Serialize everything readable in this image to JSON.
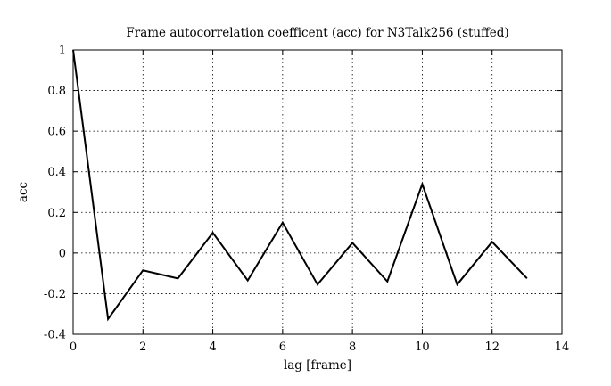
{
  "chart_data": {
    "type": "line",
    "title": "Frame autocorrelation coefficent (acc) for N3Talk256 (stuffed)",
    "xlabel": "lag [frame]",
    "ylabel": "acc",
    "xlim": [
      0,
      14
    ],
    "ylim": [
      -0.4,
      1
    ],
    "xticks": [
      0,
      2,
      4,
      6,
      8,
      10,
      12,
      14
    ],
    "yticks": [
      1,
      0.8,
      0.6,
      0.4,
      0.2,
      0,
      -0.2,
      -0.4
    ],
    "xtick_labels": [
      "0",
      "2",
      "4",
      "6",
      "8",
      "10",
      "12",
      "14"
    ],
    "ytick_labels": [
      "1",
      "0.8",
      "0.6",
      "0.4",
      "0.2",
      "0",
      "-0.2",
      "-0.4"
    ],
    "grid": true,
    "series": [
      {
        "x": [
          0,
          1,
          2,
          3,
          4,
          5,
          6,
          7,
          8,
          9,
          10,
          11,
          12,
          13
        ],
        "y": [
          1.0,
          -0.325,
          -0.085,
          -0.125,
          0.1,
          -0.135,
          0.15,
          -0.155,
          0.05,
          -0.14,
          0.34,
          -0.155,
          0.055,
          -0.125
        ],
        "color": "#000000"
      }
    ]
  }
}
